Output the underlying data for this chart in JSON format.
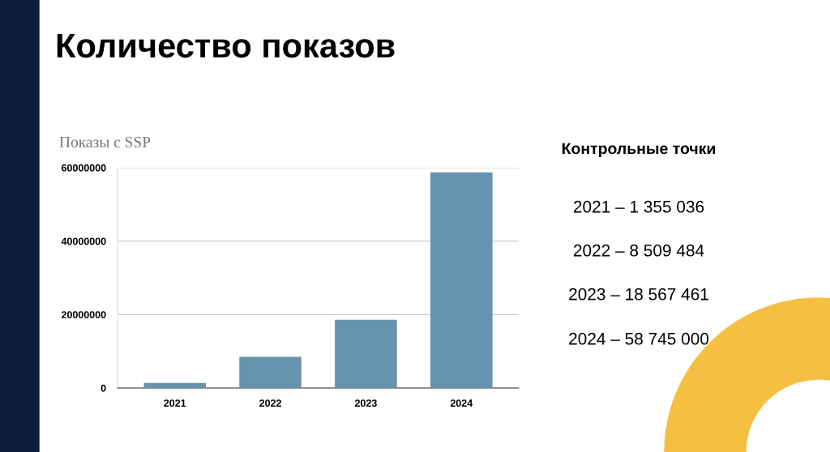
{
  "chart_data": {
    "type": "bar",
    "title": "Количество показов",
    "subtitle": "Показы с SSP",
    "categories": [
      "2021",
      "2022",
      "2023",
      "2024"
    ],
    "values": [
      1355036,
      8509484,
      18567461,
      58745000
    ],
    "color": "#6693ae",
    "ylim": [
      0,
      60000000
    ],
    "yticks": [
      0,
      20000000,
      40000000,
      60000000
    ],
    "grid": "y",
    "annotations": [
      "Контрольные точки",
      "2021 – 1 355 036",
      "2022 – 8 509 484",
      "2023 – 18 567 461",
      "2024 – 58 745 000"
    ]
  }
}
